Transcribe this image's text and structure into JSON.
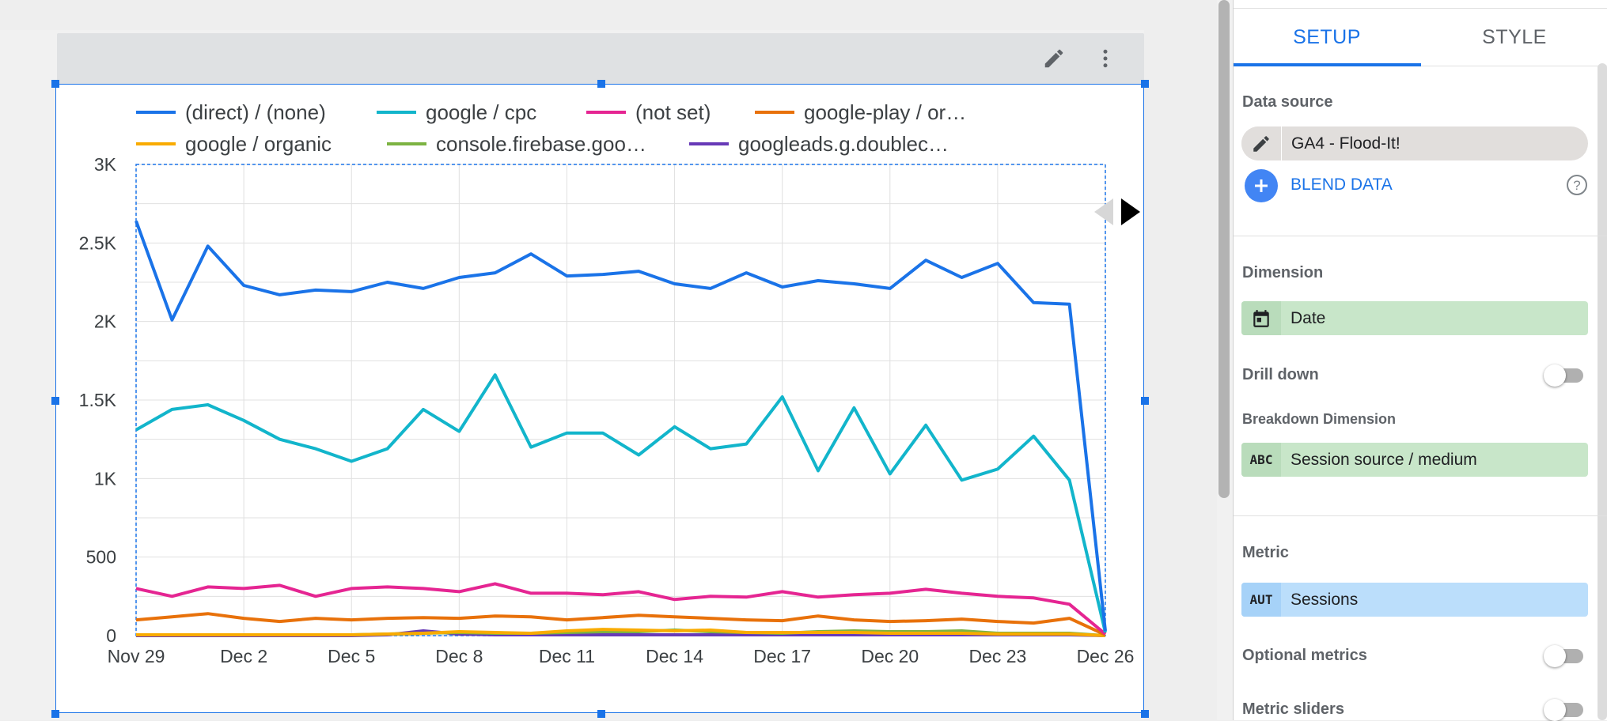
{
  "chart_data": {
    "type": "line",
    "categories": [
      "Nov 29",
      "Nov 30",
      "Dec 1",
      "Dec 2",
      "Dec 3",
      "Dec 4",
      "Dec 5",
      "Dec 6",
      "Dec 7",
      "Dec 8",
      "Dec 9",
      "Dec 10",
      "Dec 11",
      "Dec 12",
      "Dec 13",
      "Dec 14",
      "Dec 15",
      "Dec 16",
      "Dec 17",
      "Dec 18",
      "Dec 19",
      "Dec 20",
      "Dec 21",
      "Dec 22",
      "Dec 23",
      "Dec 24",
      "Dec 25",
      "Dec 26"
    ],
    "x_tick_labels": [
      "Nov 29",
      "Dec 2",
      "Dec 5",
      "Dec 8",
      "Dec 11",
      "Dec 14",
      "Dec 17",
      "Dec 20",
      "Dec 23",
      "Dec 26"
    ],
    "y_tick_labels": [
      "0",
      "500",
      "1K",
      "1.5K",
      "2K",
      "2.5K",
      "3K"
    ],
    "y_ticks": [
      0,
      500,
      1000,
      1500,
      2000,
      2500,
      3000
    ],
    "ylim": [
      0,
      3000
    ],
    "series": [
      {
        "name": "(direct) / (none)",
        "color": "#1a73e8",
        "values": [
          2640,
          2010,
          2480,
          2230,
          2170,
          2200,
          2190,
          2250,
          2210,
          2280,
          2310,
          2430,
          2290,
          2300,
          2320,
          2240,
          2210,
          2310,
          2220,
          2260,
          2240,
          2210,
          2390,
          2280,
          2370,
          2120,
          2110,
          30
        ]
      },
      {
        "name": "google / cpc",
        "color": "#12b5cb",
        "values": [
          1310,
          1440,
          1470,
          1370,
          1250,
          1190,
          1110,
          1190,
          1440,
          1300,
          1660,
          1200,
          1290,
          1290,
          1150,
          1330,
          1190,
          1220,
          1520,
          1050,
          1450,
          1030,
          1340,
          990,
          1060,
          1270,
          990,
          20
        ]
      },
      {
        "name": "(not set)",
        "color": "#e52592",
        "values": [
          300,
          250,
          310,
          300,
          320,
          250,
          300,
          310,
          300,
          280,
          330,
          270,
          270,
          260,
          280,
          230,
          250,
          245,
          280,
          245,
          260,
          270,
          295,
          270,
          250,
          240,
          200,
          10
        ]
      },
      {
        "name": "google-play / or…",
        "color": "#e8710a",
        "values": [
          100,
          120,
          140,
          110,
          90,
          110,
          100,
          110,
          115,
          110,
          125,
          120,
          100,
          115,
          130,
          120,
          110,
          100,
          95,
          125,
          100,
          90,
          95,
          105,
          90,
          80,
          110,
          5
        ]
      },
      {
        "name": "google / organic",
        "color": "#f9ab00",
        "values": [
          5,
          5,
          5,
          5,
          5,
          5,
          5,
          10,
          15,
          25,
          20,
          15,
          30,
          40,
          35,
          30,
          35,
          20,
          20,
          20,
          20,
          15,
          15,
          15,
          10,
          10,
          10,
          0
        ]
      },
      {
        "name": "console.firebase.goo…",
        "color": "#7cb342",
        "values": [
          5,
          5,
          5,
          5,
          5,
          5,
          5,
          10,
          15,
          20,
          15,
          15,
          20,
          25,
          25,
          35,
          25,
          20,
          15,
          25,
          30,
          25,
          25,
          30,
          15,
          15,
          15,
          0
        ]
      },
      {
        "name": "googleads.g.doublec…",
        "color": "#673ab7",
        "values": [
          0,
          0,
          0,
          0,
          0,
          0,
          0,
          5,
          30,
          10,
          5,
          5,
          5,
          5,
          5,
          5,
          5,
          5,
          5,
          5,
          5,
          5,
          5,
          5,
          5,
          5,
          5,
          0
        ]
      }
    ],
    "legend_position": "top",
    "grid": true
  },
  "chart_header": {
    "edit_icon": "pencil-icon",
    "menu_icon": "more-vert-icon"
  },
  "legend_nav": {
    "prev_icon": "triangle-left-icon",
    "next_icon": "triangle-right-icon"
  },
  "panel": {
    "tabs": [
      {
        "label": "SETUP"
      },
      {
        "label": "STYLE"
      }
    ],
    "data_source": {
      "label": "Data source",
      "value": "GA4 - Flood-It!",
      "blend_label": "BLEND DATA",
      "help_icon": "help-icon"
    },
    "dimension": {
      "label": "Dimension",
      "value": "Date",
      "icon": "calendar-icon"
    },
    "drill_down": {
      "label": "Drill down",
      "enabled": false
    },
    "breakdown": {
      "label": "Breakdown Dimension",
      "value": "Session source / medium",
      "type_label": "ABC"
    },
    "metric": {
      "label": "Metric",
      "value": "Sessions",
      "type_label": "AUT"
    },
    "optional_metrics": {
      "label": "Optional metrics",
      "enabled": false
    },
    "metric_sliders": {
      "label": "Metric sliders",
      "enabled": false
    }
  },
  "colors": {
    "accent": "#1a73e8",
    "dimension_chip": "#c8e6c9",
    "metric_chip": "#bbdefb"
  }
}
